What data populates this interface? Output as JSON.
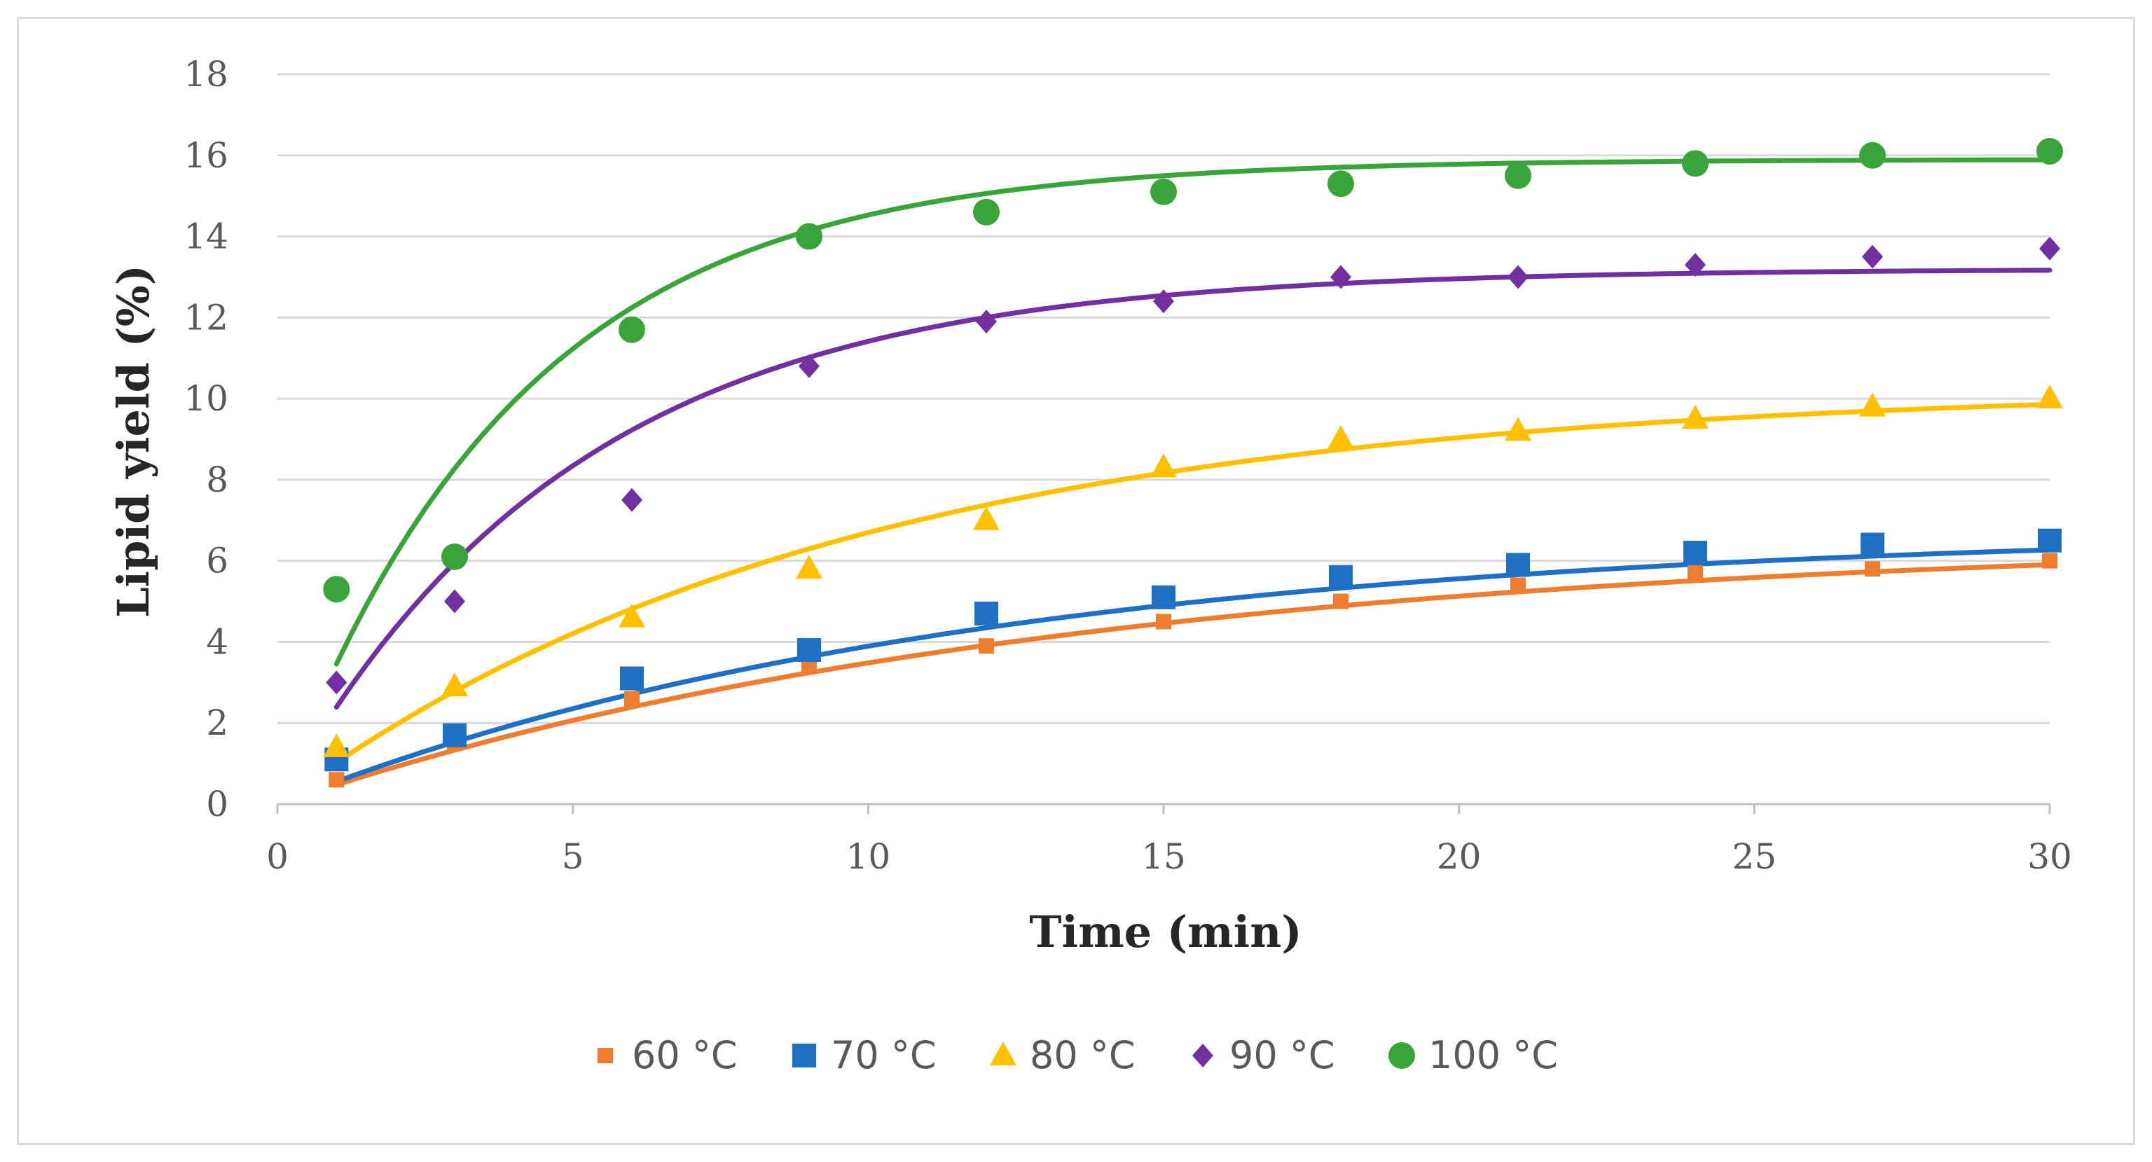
{
  "chart_data": {
    "type": "scatter",
    "title": "",
    "xlabel": "Time (min)",
    "ylabel": "Lipid yield (%)",
    "xlim": [
      0,
      30
    ],
    "ylim": [
      0,
      18
    ],
    "xticks": [
      "0",
      "5",
      "10",
      "15",
      "20",
      "25",
      "30"
    ],
    "yticks": [
      "0",
      "2",
      "4",
      "6",
      "8",
      "10",
      "12",
      "14",
      "16",
      "18"
    ],
    "grid": "horizontal",
    "legend_position": "bottom",
    "x": [
      1,
      3,
      6,
      9,
      12,
      15,
      18,
      21,
      24,
      27,
      30
    ],
    "series": [
      {
        "name": "60 °C",
        "color": "#ed7d31",
        "marker": "small-square",
        "values": [
          0.6,
          1.5,
          2.6,
          3.4,
          3.9,
          4.5,
          5.0,
          5.4,
          5.7,
          5.8,
          6.0
        ],
        "fit_plateau": 6.6,
        "fit_rate": 0.075
      },
      {
        "name": "70 °C",
        "color": "#1f6fc5",
        "marker": "square",
        "values": [
          1.1,
          1.7,
          3.1,
          3.8,
          4.7,
          5.1,
          5.6,
          5.9,
          6.2,
          6.4,
          6.5
        ],
        "fit_plateau": 6.8,
        "fit_rate": 0.085
      },
      {
        "name": "80 °C",
        "color": "#ffc000",
        "marker": "triangle",
        "values": [
          1.4,
          2.9,
          4.6,
          5.8,
          7.0,
          8.3,
          9.0,
          9.2,
          9.5,
          9.8,
          10.0
        ],
        "fit_plateau": 10.3,
        "fit_rate": 0.105
      },
      {
        "name": "90 °C",
        "color": "#7030a0",
        "marker": "diamond",
        "values": [
          3.0,
          5.0,
          7.5,
          10.8,
          11.9,
          12.4,
          13.0,
          13.0,
          13.3,
          13.5,
          13.7
        ],
        "fit_plateau": 13.2,
        "fit_rate": 0.2
      },
      {
        "name": "100 °C",
        "color": "#3aa33a",
        "marker": "circle",
        "values": [
          5.3,
          6.1,
          11.7,
          14.0,
          14.6,
          15.1,
          15.3,
          15.5,
          15.8,
          16.0,
          16.1
        ],
        "fit_plateau": 15.9,
        "fit_rate": 0.245
      }
    ]
  }
}
